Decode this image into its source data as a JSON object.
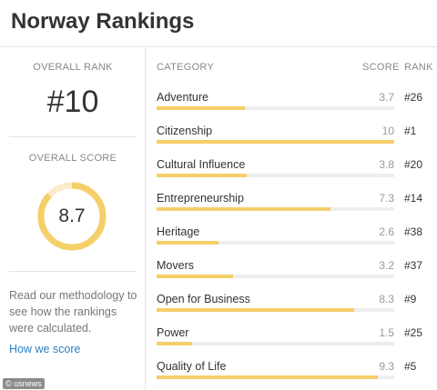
{
  "page": {
    "title": "Norway Rankings"
  },
  "overall": {
    "rank_label": "OVERALL RANK",
    "rank_value": "#10",
    "score_label": "OVERALL SCORE",
    "score_value": "8.7",
    "score_fraction": 0.87
  },
  "methodology": {
    "text": "Read our methodology to see how the rankings were calculated.",
    "link": "How we score"
  },
  "watermark": "© usnews",
  "table": {
    "headers": {
      "category": "CATEGORY",
      "score": "SCORE",
      "rank": "RANK"
    },
    "rows": [
      {
        "category": "Adventure",
        "score": "3.7",
        "rank": "#26",
        "fraction": 0.37
      },
      {
        "category": "Citizenship",
        "score": "10",
        "rank": "#1",
        "fraction": 1.0
      },
      {
        "category": "Cultural Influence",
        "score": "3.8",
        "rank": "#20",
        "fraction": 0.38
      },
      {
        "category": "Entrepreneurship",
        "score": "7.3",
        "rank": "#14",
        "fraction": 0.73
      },
      {
        "category": "Heritage",
        "score": "2.6",
        "rank": "#38",
        "fraction": 0.26
      },
      {
        "category": "Movers",
        "score": "3.2",
        "rank": "#37",
        "fraction": 0.32
      },
      {
        "category": "Open for Business",
        "score": "8.3",
        "rank": "#9",
        "fraction": 0.83
      },
      {
        "category": "Power",
        "score": "1.5",
        "rank": "#25",
        "fraction": 0.15
      },
      {
        "category": "Quality of Life",
        "score": "9.3",
        "rank": "#5",
        "fraction": 0.93
      }
    ]
  },
  "colors": {
    "bar_fill": "#f4cf6a",
    "bar_track": "#eeeeee",
    "gauge_track": "#fbeccb",
    "link": "#2a7ec6"
  }
}
